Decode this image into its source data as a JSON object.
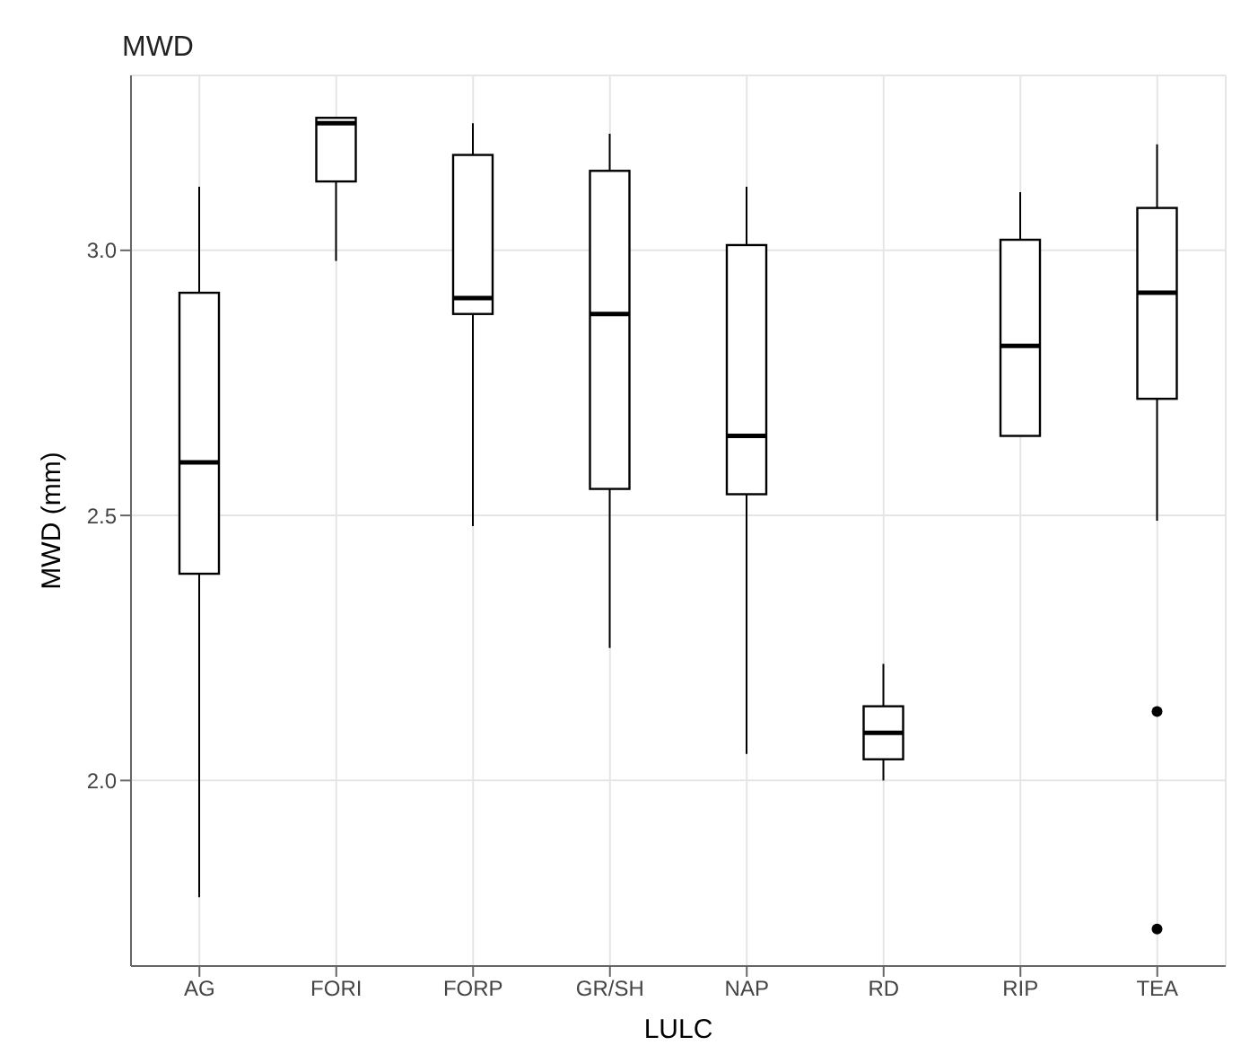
{
  "chart_data": {
    "type": "box",
    "title": "MWD",
    "xlabel": "LULC",
    "ylabel": "MWD (mm)",
    "categories": [
      "AG",
      "FORI",
      "FORP",
      "GR/SH",
      "NAP",
      "RD",
      "RIP",
      "TEA"
    ],
    "boxes": [
      {
        "low": 1.78,
        "q1": 2.39,
        "median": 2.6,
        "q3": 2.92,
        "high": 3.12
      },
      {
        "low": 2.98,
        "q1": 3.13,
        "median": 3.24,
        "q3": 3.25,
        "high": 3.25
      },
      {
        "low": 2.48,
        "q1": 2.88,
        "median": 2.91,
        "q3": 3.18,
        "high": 3.24
      },
      {
        "low": 2.25,
        "q1": 2.55,
        "median": 2.88,
        "q3": 3.15,
        "high": 3.22
      },
      {
        "low": 2.05,
        "q1": 2.54,
        "median": 2.65,
        "q3": 3.01,
        "high": 3.12
      },
      {
        "low": 2.0,
        "q1": 2.04,
        "median": 2.09,
        "q3": 2.14,
        "high": 2.22
      },
      {
        "low": 2.65,
        "q1": 2.65,
        "median": 2.82,
        "q3": 3.02,
        "high": 3.11
      },
      {
        "low": 2.49,
        "q1": 2.72,
        "median": 2.92,
        "q3": 3.08,
        "high": 3.2,
        "outliers": [
          2.13,
          1.72
        ]
      }
    ],
    "color": "#000000",
    "ylim": [
      1.65,
      3.33
    ],
    "yticks": [
      {
        "value": 2,
        "label": "2.0"
      },
      {
        "value": 2.5,
        "label": "2.5"
      },
      {
        "value": 3,
        "label": "3.0"
      }
    ],
    "grid": true
  }
}
